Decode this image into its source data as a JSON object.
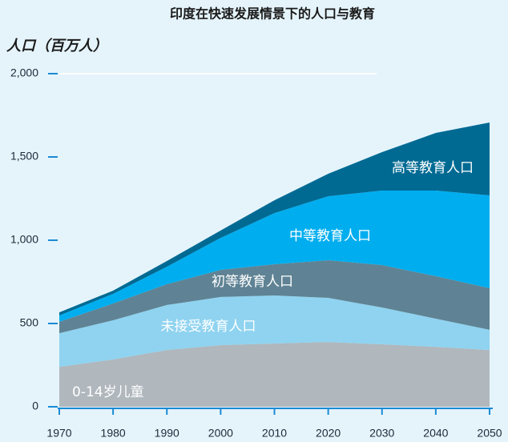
{
  "chart_data": {
    "type": "stacked_area",
    "title": "印度在快速发展情景下的人口与教育",
    "y_label": "人口（百万人）",
    "x": [
      1970,
      1980,
      1990,
      2000,
      2010,
      2020,
      2030,
      2040,
      2050
    ],
    "xlim": [
      1970,
      2050
    ],
    "xticks": [
      1970,
      1980,
      1990,
      2000,
      2010,
      2020,
      2030,
      2040,
      2050
    ],
    "ylim": [
      0,
      2000
    ],
    "yticks": [
      0,
      500,
      {
        "value": 1000,
        "label": "1,000"
      },
      {
        "value": 1500,
        "label": "1,500"
      },
      {
        "value": 2000,
        "label": "2,000"
      }
    ],
    "series": [
      {
        "name": "0-14岁儿童",
        "color": "#b0b7bd",
        "values": [
          240,
          284,
          341,
          370,
          380,
          389,
          375,
          360,
          341
        ]
      },
      {
        "name": "未接受教育人口",
        "color": "#8fd3f0",
        "values": [
          202,
          235,
          270,
          289,
          288,
          265,
          221,
          169,
          121
        ]
      },
      {
        "name": "初等教育人口",
        "color": "#5f8394",
        "values": [
          68,
          101,
          125,
          163,
          188,
          226,
          255,
          255,
          250
        ]
      },
      {
        "name": "中等教育人口",
        "color": "#00aeef",
        "values": [
          38,
          58,
          105,
          192,
          307,
          384,
          447,
          514,
          557
        ]
      },
      {
        "name": "高等教育人口",
        "color": "#006a93",
        "values": [
          19,
          19,
          34,
          44,
          77,
          135,
          231,
          346,
          438
        ]
      }
    ]
  }
}
